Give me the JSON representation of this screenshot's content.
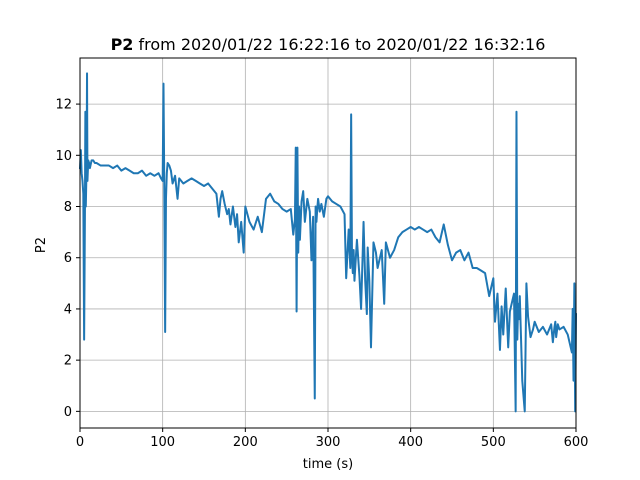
{
  "chart_data": {
    "type": "line",
    "title": {
      "prefix": "P2",
      "rest": " from 2020/01/22 16:22:16 to 2020/01/22 16:32:16"
    },
    "xlabel": "time (s)",
    "ylabel": "P2",
    "xlim": [
      0,
      600
    ],
    "ylim": [
      -0.65,
      13.8
    ],
    "xticks": [
      0,
      100,
      200,
      300,
      400,
      500,
      600
    ],
    "yticks": [
      0,
      2,
      4,
      6,
      8,
      10,
      12
    ],
    "grid": true,
    "line_color": "#1f77b4",
    "series": [
      {
        "x": [
          0,
          1,
          2,
          3,
          4,
          5,
          6,
          6.5,
          7,
          8,
          8.5,
          9,
          10,
          11,
          12,
          14,
          16,
          18,
          20,
          25,
          30,
          35,
          40,
          45,
          50,
          55,
          60,
          65,
          70,
          75,
          80,
          85,
          90,
          95,
          98,
          100,
          101,
          102,
          103,
          104,
          105,
          106,
          108,
          110,
          112,
          115,
          118,
          120,
          125,
          130,
          135,
          140,
          145,
          150,
          155,
          160,
          165,
          168,
          170,
          172,
          175,
          178,
          180,
          182,
          185,
          188,
          190,
          192,
          195,
          198,
          200,
          205,
          210,
          215,
          220,
          225,
          230,
          235,
          240,
          245,
          250,
          255,
          258,
          260,
          261,
          262,
          263,
          264,
          265,
          266,
          268,
          270,
          272,
          275,
          278,
          280,
          282,
          284,
          285,
          286,
          287,
          288,
          290,
          292,
          295,
          298,
          300,
          305,
          310,
          315,
          320,
          322,
          325,
          327,
          328,
          329,
          330,
          331,
          332,
          335,
          338,
          340,
          342,
          343,
          345,
          347,
          348,
          350,
          352,
          355,
          358,
          360,
          365,
          368,
          370,
          375,
          380,
          385,
          390,
          395,
          400,
          405,
          410,
          415,
          420,
          425,
          430,
          435,
          440,
          445,
          450,
          455,
          460,
          465,
          470,
          475,
          480,
          485,
          490,
          495,
          500,
          502,
          505,
          508,
          510,
          512,
          515,
          518,
          520,
          525,
          527,
          528,
          529,
          530,
          531,
          532,
          535,
          538,
          540,
          542,
          545,
          548,
          550,
          555,
          560,
          565,
          570,
          572,
          574,
          575,
          576,
          578,
          580,
          585,
          590,
          595,
          596,
          597,
          598,
          599,
          600
        ],
        "y": [
          9.5,
          10.2,
          9.3,
          9.0,
          8.5,
          2.8,
          8.0,
          11.7,
          8.0,
          9.6,
          13.2,
          9.0,
          9.8,
          9.7,
          9.5,
          9.8,
          9.8,
          9.7,
          9.7,
          9.6,
          9.6,
          9.6,
          9.5,
          9.6,
          9.4,
          9.5,
          9.4,
          9.3,
          9.3,
          9.4,
          9.2,
          9.3,
          9.2,
          9.3,
          9.1,
          9.0,
          12.8,
          8.5,
          3.1,
          8.3,
          9.3,
          9.7,
          9.6,
          9.4,
          8.9,
          9.2,
          8.3,
          9.1,
          8.9,
          9.0,
          9.1,
          9.0,
          8.9,
          8.8,
          8.9,
          8.7,
          8.5,
          7.6,
          8.3,
          8.6,
          8.1,
          7.7,
          7.9,
          7.3,
          8.0,
          7.2,
          7.7,
          6.6,
          7.4,
          6.2,
          8.0,
          7.4,
          7.1,
          7.6,
          7.0,
          8.3,
          8.5,
          8.2,
          8.1,
          7.9,
          7.8,
          7.9,
          6.9,
          7.5,
          10.3,
          3.9,
          10.3,
          6.2,
          8.0,
          6.7,
          8.2,
          8.6,
          7.4,
          8.3,
          7.8,
          5.9,
          7.6,
          0.5,
          8.0,
          7.4,
          7.9,
          8.3,
          7.8,
          8.1,
          7.6,
          8.3,
          8.4,
          8.2,
          8.1,
          8.0,
          7.7,
          5.2,
          7.1,
          5.6,
          11.6,
          6.1,
          5.4,
          6.3,
          5.1,
          6.7,
          5.3,
          4.0,
          6.2,
          7.4,
          5.1,
          3.8,
          6.4,
          5.1,
          2.5,
          6.6,
          6.2,
          5.6,
          6.3,
          4.2,
          6.6,
          6.0,
          6.3,
          6.8,
          7.0,
          7.1,
          7.2,
          7.1,
          7.2,
          7.1,
          7.0,
          7.1,
          6.8,
          6.6,
          7.3,
          6.5,
          5.9,
          6.2,
          6.3,
          5.9,
          6.2,
          5.6,
          5.6,
          5.5,
          5.4,
          4.5,
          5.2,
          3.5,
          4.6,
          2.4,
          4.1,
          3.0,
          4.8,
          2.5,
          3.9,
          4.6,
          0.0,
          11.7,
          2.8,
          4.2,
          3.6,
          4.5,
          1.2,
          0.0,
          5.0,
          3.7,
          2.9,
          3.2,
          3.5,
          3.1,
          3.3,
          3.0,
          3.4,
          2.7,
          3.3,
          3.5,
          2.9,
          3.4,
          3.2,
          3.3,
          3.0,
          2.3,
          4.0,
          1.2,
          5.0,
          0.0,
          3.8
        ]
      }
    ]
  }
}
